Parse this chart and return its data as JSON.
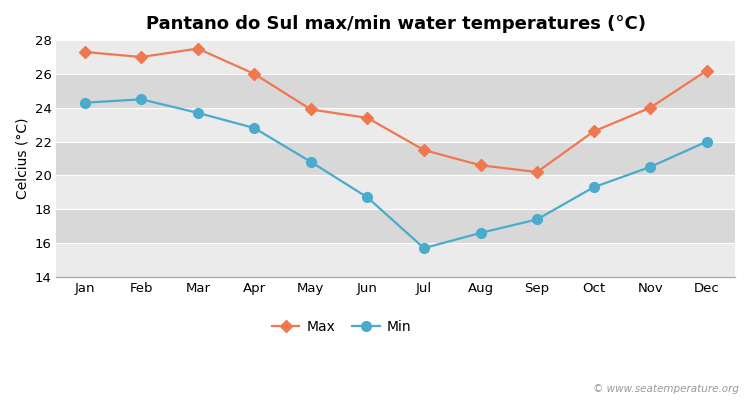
{
  "title": "Pantano do Sul max/min water temperatures (°C)",
  "ylabel": "Celcius (°C)",
  "months": [
    "Jan",
    "Feb",
    "Mar",
    "Apr",
    "May",
    "Jun",
    "Jul",
    "Aug",
    "Sep",
    "Oct",
    "Nov",
    "Dec"
  ],
  "max_temps": [
    27.3,
    27.0,
    27.5,
    26.0,
    23.9,
    23.4,
    21.5,
    20.6,
    20.2,
    22.6,
    24.0,
    26.2
  ],
  "min_temps": [
    24.3,
    24.5,
    23.7,
    22.8,
    20.8,
    18.7,
    15.7,
    16.6,
    17.4,
    19.3,
    20.5,
    22.0
  ],
  "max_color": "#f07850",
  "min_color": "#4aabcc",
  "outer_bg": "#ffffff",
  "plot_bg_light": "#ebebeb",
  "plot_bg_dark": "#d8d8d8",
  "grid_color": "#ffffff",
  "spine_color": "#aaaaaa",
  "ylim": [
    14,
    28
  ],
  "yticks": [
    14,
    16,
    18,
    20,
    22,
    24,
    26,
    28
  ],
  "legend_labels": [
    "Max",
    "Min"
  ],
  "watermark": "© www.seatemperature.org",
  "title_fontsize": 13,
  "axis_label_fontsize": 10,
  "tick_fontsize": 9.5,
  "legend_fontsize": 10,
  "marker_size_max": 6,
  "marker_size_min": 7,
  "line_width": 1.6
}
